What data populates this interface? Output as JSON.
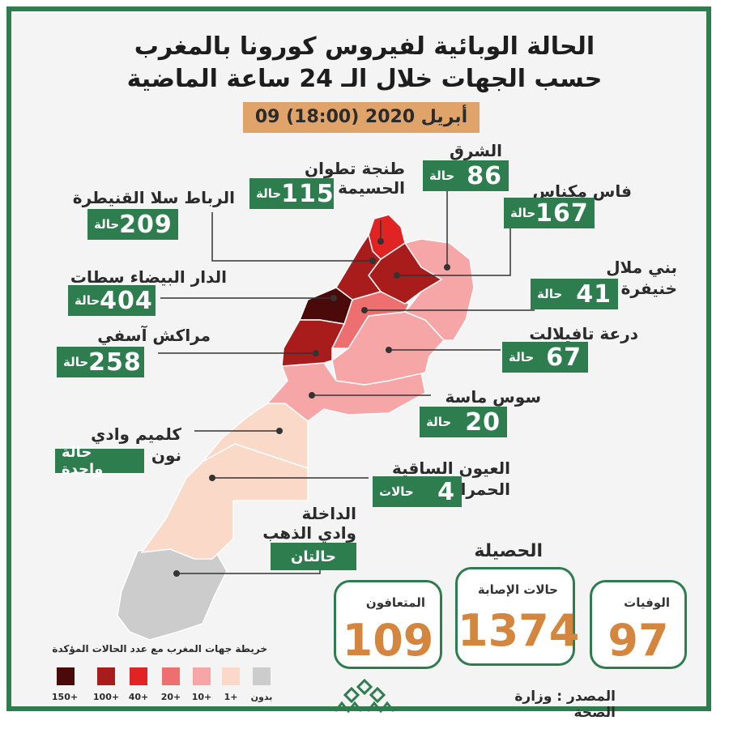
{
  "title": {
    "line1": "الحالة الوبائية لفيروس كورونا بالمغرب",
    "line2": "حسب الجهات خلال الـ 24 ساعة الماضية"
  },
  "date": "09 أبريل 2020 (18:00)",
  "regions": {
    "tanger": {
      "name_1": "طنجة تطوان",
      "name_2": "الحسيمة",
      "count": "115",
      "unit": "حالة"
    },
    "oriental": {
      "name_1": "الشرق",
      "count": "86",
      "unit": "حالة"
    },
    "fes": {
      "name_1": "فاس مكناس",
      "count": "167",
      "unit": "حالة"
    },
    "rabat": {
      "name_1": "الرباط سلا القنيطرة",
      "count": "209",
      "unit": "حالة"
    },
    "beni": {
      "name_1": "بني ملال",
      "name_2": "خنيفرة",
      "count": "41",
      "unit": "حالة"
    },
    "casa": {
      "name_1": "الدار البيضاء سطات",
      "count": "404",
      "unit": "حالة"
    },
    "draa": {
      "name_1": "درعة تافيلالت",
      "count": "67",
      "unit": "حالة"
    },
    "marrakech": {
      "name_1": "مراكش آسفي",
      "count": "258",
      "unit": "حالة"
    },
    "souss": {
      "name_1": "سوس ماسة",
      "count": "20",
      "unit": "حالة"
    },
    "guelmim": {
      "name_1": "كلميم وادي",
      "name_2": "نون",
      "text": "حالة واحدة"
    },
    "laayoune": {
      "name_1": "العيون الساقية",
      "name_2": "الحمراء",
      "count": "4",
      "unit": "حالات"
    },
    "dakhla": {
      "name_1": "الداخلة",
      "name_2": "وادي الذهب",
      "text": "حالتان"
    }
  },
  "totals": {
    "title": "الحصيلة",
    "recovered": {
      "label": "المتعافون",
      "value": "109"
    },
    "cases": {
      "label": "حالات الإصابة",
      "value": "1374"
    },
    "deaths": {
      "label": "الوفيات",
      "value": "97"
    }
  },
  "legend": {
    "title": "خريطة جهات المغرب مع عدد الحالات المؤكدة",
    "items": [
      {
        "label": "150+",
        "color": "#4a0a0a"
      },
      {
        "label": "100+",
        "color": "#a81c1c"
      },
      {
        "label": "40+",
        "color": "#e02424"
      },
      {
        "label": "20+",
        "color": "#ee6f6f"
      },
      {
        "label": "10+",
        "color": "#f6a6a6"
      },
      {
        "label": "1+",
        "color": "#fad9c8"
      },
      {
        "label": "بدون",
        "color": "#cccccc"
      }
    ]
  },
  "source": "المصدر : وزارة الصحة",
  "colors": {
    "accent": "#2e7d4f",
    "orange": "#d4853e",
    "date_bg": "#e0a36a"
  }
}
